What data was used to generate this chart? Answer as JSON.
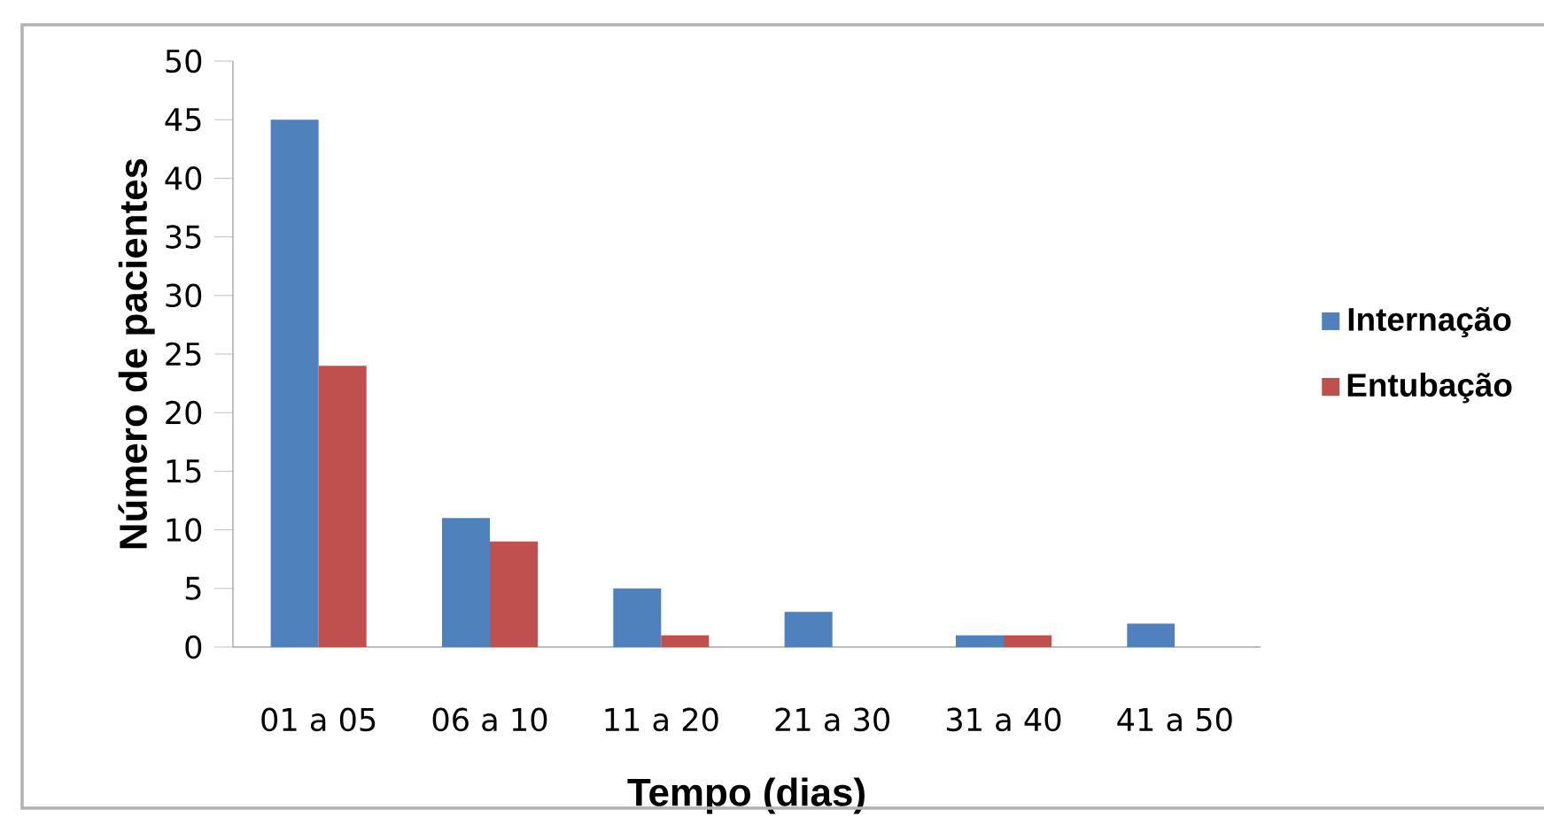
{
  "chart_data": {
    "type": "bar",
    "xlabel": "Tempo (dias)",
    "ylabel": "Número de pacientes",
    "categories": [
      "01 a 05",
      "06 a 10",
      "11 a 20",
      "21 a 30",
      "31 a 40",
      "41 a 50"
    ],
    "series": [
      {
        "name": "Internação",
        "color": "#4f81bd",
        "values": [
          45,
          11,
          5,
          3,
          1,
          2
        ]
      },
      {
        "name": "Entubação",
        "color": "#c0504d",
        "values": [
          24,
          9,
          1,
          0,
          1,
          0
        ]
      }
    ],
    "ylim": [
      0,
      50
    ],
    "yticks": [
      0,
      5,
      10,
      15,
      20,
      25,
      30,
      35,
      40,
      45,
      50
    ],
    "grid": false,
    "legend": "right"
  }
}
